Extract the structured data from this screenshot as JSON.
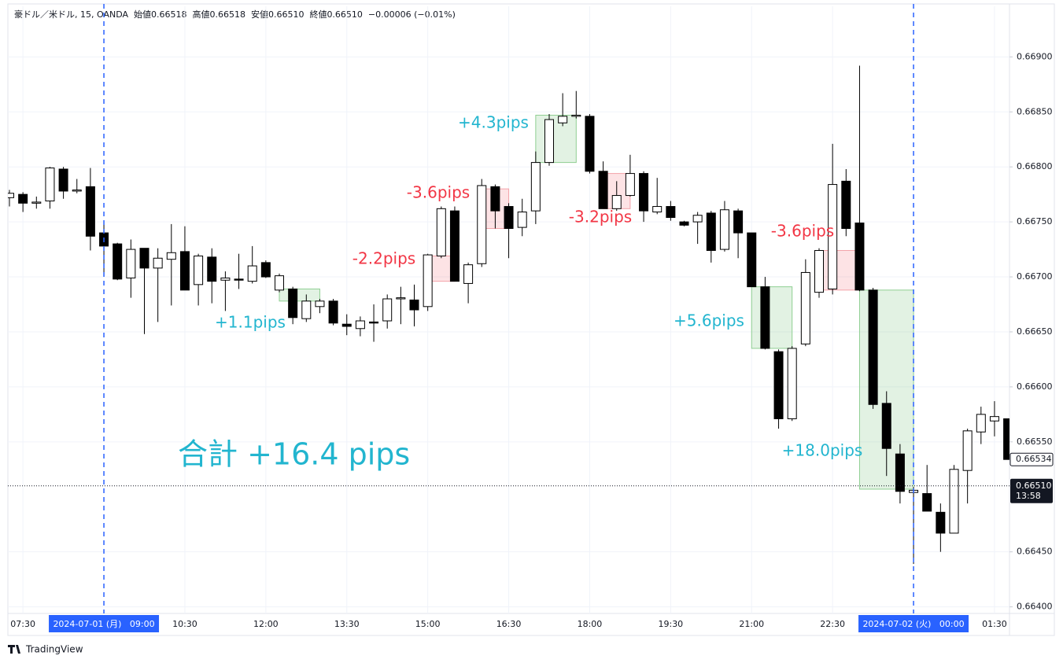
{
  "chart_data": {
    "type": "candlestick",
    "header": "豪ドル／米ドル, 15, OANDA  始値0.66518  高値0.66518  安値0.66510  終値0.66510  −0.00006 (−0.01%)",
    "categories": [
      null,
      "07:30",
      null,
      null,
      null,
      null,
      null,
      "2024-07-01 (月)   09:00",
      null,
      null,
      null,
      null,
      null,
      "10:30",
      null,
      null,
      null,
      null,
      null,
      "12:00",
      null,
      null,
      null,
      null,
      null,
      "13:30",
      null,
      null,
      null,
      null,
      null,
      "15:00",
      null,
      null,
      null,
      null,
      null,
      "16:30",
      null,
      null,
      null,
      null,
      null,
      "18:00",
      null,
      null,
      null,
      null,
      null,
      "19:30",
      null,
      null,
      null,
      null,
      null,
      "21:00",
      null,
      null,
      null,
      null,
      null,
      "22:30",
      null,
      null,
      null,
      null,
      null,
      "2024-07-02 (火)   00:00",
      null,
      null,
      null,
      null,
      null,
      "01:30",
      null
    ],
    "open": [
      0.66772,
      0.66775,
      0.66767,
      0.66769,
      0.66798,
      0.66778,
      0.66782,
      0.6674,
      0.6673,
      0.66699,
      0.66726,
      0.66708,
      0.66716,
      0.66723,
      0.66693,
      0.66718,
      0.66697,
      0.66698,
      0.66696,
      0.66713,
      0.66688,
      0.66689,
      0.66662,
      0.66673,
      0.66678,
      0.66657,
      0.66653,
      0.66659,
      0.6666,
      0.6668,
      0.66679,
      0.66673,
      0.66719,
      0.6676,
      0.66694,
      0.66712,
      0.66782,
      0.66764,
      0.66745,
      0.6676,
      0.66804,
      0.6684,
      0.66846,
      0.66846,
      0.66796,
      0.66762,
      0.66774,
      0.66794,
      0.66759,
      0.66764,
      0.6675,
      0.6675,
      0.66758,
      0.66725,
      0.6676,
      0.6674,
      0.66691,
      0.66632,
      0.66571,
      0.66639,
      0.66686,
      0.66689,
      0.66787,
      0.66749,
      0.66688,
      0.66585,
      0.66539,
      0.66504,
      0.66503,
      0.66486,
      0.66467,
      0.66524,
      0.66559,
      0.66569,
      0.66571
    ],
    "high": [
      0.66779,
      0.66777,
      0.66773,
      0.668,
      0.668,
      0.66789,
      0.66799,
      0.66748,
      0.66731,
      0.66734,
      0.66726,
      0.66726,
      0.66748,
      0.66746,
      0.66721,
      0.66726,
      0.66705,
      0.66721,
      0.66728,
      0.66715,
      0.66703,
      0.66691,
      0.66684,
      0.6668,
      0.6668,
      0.66666,
      0.66664,
      0.66675,
      0.66684,
      0.66691,
      0.66693,
      0.66721,
      0.66764,
      0.66764,
      0.66713,
      0.66789,
      0.66784,
      0.66767,
      0.66771,
      0.66814,
      0.66848,
      0.66867,
      0.66869,
      0.66848,
      0.66805,
      0.66787,
      0.66811,
      0.66796,
      0.6679,
      0.66769,
      0.66751,
      0.66759,
      0.6676,
      0.66769,
      0.66762,
      0.6674,
      0.667,
      0.66634,
      0.66637,
      0.66716,
      0.66726,
      0.66821,
      0.66798,
      0.66892,
      0.6669,
      0.66596,
      0.66548,
      0.66509,
      0.66529,
      0.66494,
      0.66529,
      0.66562,
      0.66582,
      0.66587,
      0.66571
    ],
    "low": [
      0.66764,
      0.66759,
      0.66762,
      0.66762,
      0.66771,
      0.66776,
      0.66724,
      0.66701,
      0.66697,
      0.66681,
      0.66648,
      0.66659,
      0.66674,
      0.66688,
      0.66674,
      0.66676,
      0.66669,
      0.66689,
      0.66694,
      0.66699,
      0.66686,
      0.66657,
      0.66659,
      0.66667,
      0.66656,
      0.66647,
      0.66646,
      0.66641,
      0.66653,
      0.66657,
      0.66655,
      0.66669,
      0.66717,
      0.66696,
      0.66676,
      0.66709,
      0.66744,
      0.66717,
      0.66737,
      0.66748,
      0.66801,
      0.66837,
      0.66844,
      0.66794,
      0.66762,
      0.6676,
      0.66773,
      0.6675,
      0.66757,
      0.66751,
      0.66746,
      0.6673,
      0.66713,
      0.66723,
      0.66717,
      0.66691,
      0.66634,
      0.66562,
      0.66569,
      0.66637,
      0.66681,
      0.66684,
      0.66737,
      0.66687,
      0.6658,
      0.66519,
      0.66494,
      0.66439,
      0.66487,
      0.6645,
      0.66467,
      0.66494,
      0.66548,
      0.66555,
      0.66534
    ],
    "close": [
      0.66776,
      0.66767,
      0.66768,
      0.66799,
      0.66778,
      0.66779,
      0.66737,
      0.66728,
      0.66698,
      0.66725,
      0.66708,
      0.66717,
      0.66722,
      0.66688,
      0.66719,
      0.66696,
      0.66699,
      0.66697,
      0.6671,
      0.667,
      0.66701,
      0.66663,
      0.66678,
      0.66678,
      0.66658,
      0.66655,
      0.6666,
      0.66658,
      0.6668,
      0.66681,
      0.6667,
      0.6672,
      0.66762,
      0.66696,
      0.66711,
      0.66783,
      0.6676,
      0.66744,
      0.66759,
      0.66804,
      0.66843,
      0.66846,
      0.66847,
      0.66796,
      0.66762,
      0.66774,
      0.66794,
      0.6676,
      0.66764,
      0.66754,
      0.66747,
      0.66756,
      0.66724,
      0.66761,
      0.6674,
      0.66691,
      0.66635,
      0.66571,
      0.66635,
      0.66704,
      0.66724,
      0.66784,
      0.66744,
      0.66688,
      0.66584,
      0.66544,
      0.66505,
      0.66506,
      0.66487,
      0.66467,
      0.66525,
      0.6656,
      0.66575,
      0.66573,
      0.66534
    ],
    "up_color": "#ffffff",
    "down_color": "#000000",
    "wick_color": "#000000",
    "ylim": [
      0.66394,
      0.66946
    ],
    "yticks": [
      {
        "value": 0.664,
        "label": "0.66400"
      },
      {
        "value": 0.6645,
        "label": "0.66450"
      },
      {
        "value": 0.6655,
        "label": "0.66550"
      },
      {
        "value": 0.666,
        "label": "0.66600"
      },
      {
        "value": 0.6665,
        "label": "0.66650"
      },
      {
        "value": 0.667,
        "label": "0.66700"
      },
      {
        "value": 0.6675,
        "label": "0.66750"
      },
      {
        "value": 0.668,
        "label": "0.66800"
      },
      {
        "value": 0.6685,
        "label": "0.66850"
      },
      {
        "value": 0.669,
        "label": "0.66900"
      }
    ],
    "grid": true,
    "annotations": [
      {
        "text": "+1.1pips",
        "from": 20,
        "to": 23,
        "top": 0.66689,
        "bottom": 0.66678,
        "color": "#22b5cf",
        "box_fill": "rgba(76,175,80,0.16)",
        "box_stroke": "#8fcf92"
      },
      {
        "text": "-2.2pips",
        "from": 31,
        "to": 33,
        "top": 0.66719,
        "bottom": 0.66696,
        "color": "#f23645",
        "box_fill": "rgba(242,54,69,0.14)",
        "box_stroke": "#f3a3aa"
      },
      {
        "text": "-3.6pips",
        "from": 35,
        "to": 37,
        "top": 0.6678,
        "bottom": 0.66744,
        "color": "#f23645",
        "box_fill": "rgba(242,54,69,0.14)",
        "box_stroke": "#f3a3aa"
      },
      {
        "text": "+4.3pips",
        "from": 39,
        "to": 42,
        "top": 0.66847,
        "bottom": 0.66804,
        "color": "#22b5cf",
        "box_fill": "rgba(76,175,80,0.16)",
        "box_stroke": "#8fcf92"
      },
      {
        "text": "-3.2pips",
        "from": 44,
        "to": 46,
        "top": 0.66794,
        "bottom": 0.66762,
        "color": "#f23645",
        "box_fill": "rgba(242,54,69,0.14)",
        "box_stroke": "#f3a3aa"
      },
      {
        "text": "+5.6pips",
        "from": 55,
        "to": 58,
        "top": 0.66691,
        "bottom": 0.66635,
        "color": "#22b5cf",
        "box_fill": "rgba(76,175,80,0.16)",
        "box_stroke": "#8fcf92"
      },
      {
        "text": "-3.6pips",
        "from": 60,
        "to": 63,
        "top": 0.66724,
        "bottom": 0.66688,
        "color": "#f23645",
        "box_fill": "rgba(242,54,69,0.14)",
        "box_stroke": "#f3a3aa"
      },
      {
        "text": "+18.0pips",
        "from": 63,
        "to": 67,
        "top": 0.66688,
        "bottom": 0.66507,
        "color": "#22b5cf",
        "box_fill": "rgba(76,175,80,0.16)",
        "box_stroke": "#8fcf92"
      }
    ],
    "total": "合計 +16.4 pips",
    "total_color": "#22b5cf",
    "last_price": {
      "value": 0.66534
    },
    "current_price": {
      "value": 0.6651,
      "label": "0.66510",
      "countdown": "13:58"
    },
    "accent_color": "#2962ff",
    "watermark": "TradingView"
  }
}
